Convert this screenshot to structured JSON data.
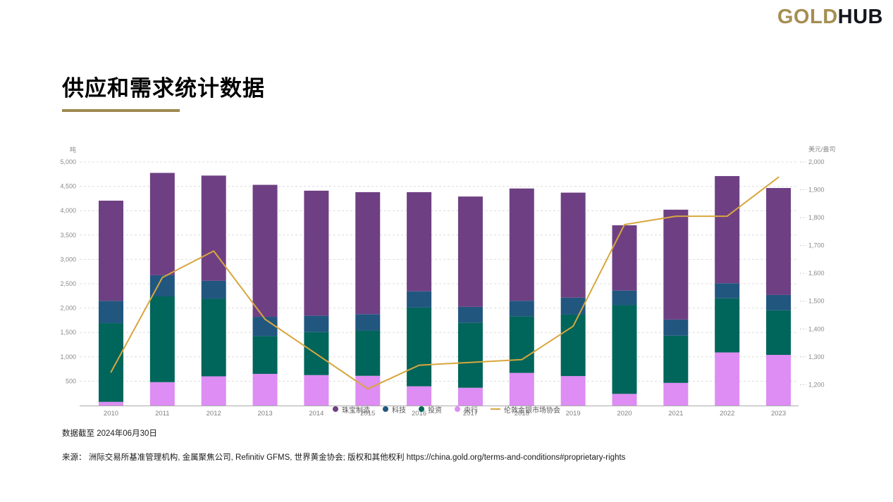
{
  "header": {
    "logo_gold": "GOLD",
    "logo_hub": "HUB"
  },
  "page": {
    "title": "供应和需求统计数据"
  },
  "footer": {
    "data_as_of": "数据截至 2024年06月30日",
    "source": "来源：  洲际交易所基准管理机构, 金属聚焦公司, Refinitiv GFMS, 世界黄金协会; 版权和其他权利 https://china.gold.org/terms-and-conditions#proprietary-rights"
  },
  "colors": {
    "jewellery": "#6e4083",
    "technology": "#21567f",
    "investment": "#00655a",
    "central_banks": "#dd8df3",
    "lbma_line": "#d8a63e",
    "brand_gold": "#a58e52",
    "grid": "#dcdcdc",
    "axis_line": "#aaaaaa"
  },
  "chart_data": {
    "type": "bar",
    "subtype": "stacked-bars-with-line",
    "categories": [
      "2010",
      "2011",
      "2012",
      "2013",
      "2014",
      "2015",
      "2016",
      "2017",
      "2018",
      "2019",
      "2020",
      "2021",
      "2022",
      "2023"
    ],
    "bar_series": [
      {
        "key": "central-banks",
        "name": "央行",
        "color": "#dd8df3",
        "values": [
          75,
          480,
          600,
          650,
          625,
          610,
          395,
          365,
          670,
          605,
          240,
          465,
          1090,
          1040
        ]
      },
      {
        "key": "investment",
        "name": "投资",
        "color": "#00655a",
        "values": [
          1615,
          1760,
          1590,
          775,
          880,
          930,
          1615,
          1330,
          1160,
          1260,
          1820,
          970,
          1110,
          915
        ]
      },
      {
        "key": "technology",
        "name": "科技",
        "color": "#21567f",
        "values": [
          460,
          435,
          370,
          395,
          340,
          335,
          335,
          330,
          320,
          350,
          300,
          330,
          310,
          315
        ]
      },
      {
        "key": "jewellery",
        "name": "珠宝制造",
        "color": "#6e4083",
        "values": [
          2055,
          2100,
          2160,
          2710,
          2565,
          2505,
          2035,
          2265,
          2305,
          2155,
          1340,
          2255,
          2200,
          2195
        ]
      }
    ],
    "line_series": {
      "key": "lbma-gold-price",
      "name": "伦敦金银市场协会",
      "color": "#d8a63e",
      "values": [
        1245,
        1585,
        1680,
        1435,
        1310,
        1185,
        1270,
        1280,
        1290,
        1410,
        1775,
        1805,
        1805,
        1945
      ]
    },
    "legend": [
      {
        "key": "jewellery",
        "label": "珠宝制造",
        "color": "#6e4083",
        "marker": "dot"
      },
      {
        "key": "technology",
        "label": "科技",
        "color": "#21567f",
        "marker": "dot"
      },
      {
        "key": "investment",
        "label": "投资",
        "color": "#00655a",
        "marker": "dot"
      },
      {
        "key": "central-banks",
        "label": "央行",
        "color": "#dd8df3",
        "marker": "dot"
      },
      {
        "key": "lbma-gold-price",
        "label": "伦敦金银市场协会",
        "color": "#d8a63e",
        "marker": "line"
      }
    ],
    "left_axis": {
      "unit": "吨",
      "min": 0,
      "max": 5000,
      "tick_labels": [
        "500",
        "1,000",
        "1,500",
        "2,000",
        "2,500",
        "3,000",
        "3,500",
        "4,000",
        "4,500",
        "5,000"
      ]
    },
    "right_axis": {
      "unit": "美元/盎司",
      "min": 1125,
      "max": 2000,
      "tick_labels": [
        "1,200",
        "1,300",
        "1,400",
        "1,500",
        "1,600",
        "1,700",
        "1,800",
        "1,900",
        "2,000"
      ]
    },
    "grid": "dashed-horizontal",
    "legend_position": "bottom-center-overlapping-x-axis"
  }
}
